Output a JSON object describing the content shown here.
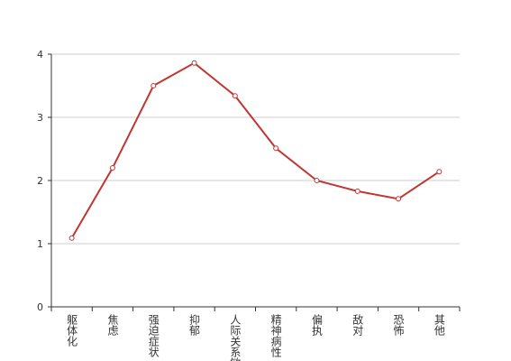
{
  "chart_data": {
    "type": "line",
    "categories": [
      "躯体化",
      "焦虑",
      "强迫症状",
      "抑郁",
      "人际关系敏感",
      "精神病性",
      "偏执",
      "敌对",
      "恐怖",
      "其他"
    ],
    "values": [
      1.09,
      2.2,
      3.5,
      3.86,
      3.34,
      2.51,
      2.0,
      1.83,
      1.71,
      2.14
    ],
    "color": "#c23531",
    "ylim": [
      0,
      4
    ],
    "yticks": [
      0,
      1,
      2,
      3,
      4
    ],
    "grid": true
  }
}
